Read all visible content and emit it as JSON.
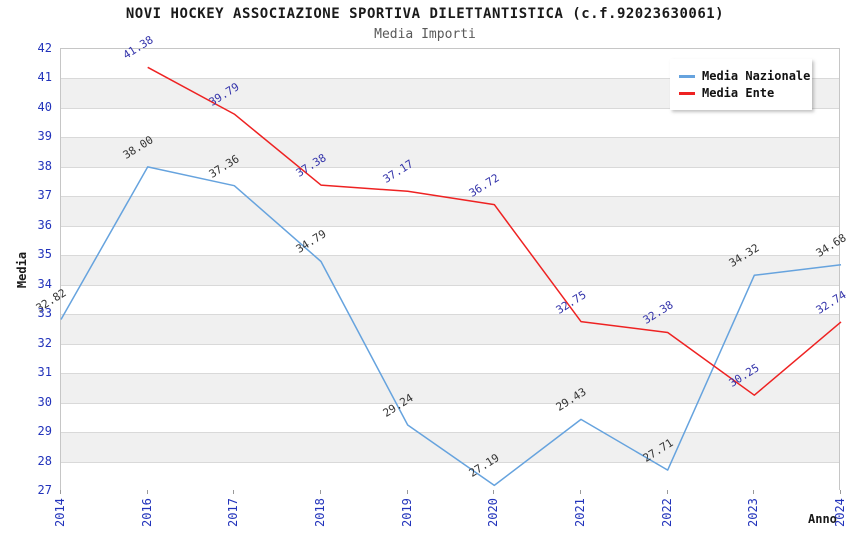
{
  "header": {
    "title": "NOVI HOCKEY ASSOCIAZIONE SPORTIVA DILETTANTISTICA (c.f.92023630061)",
    "subtitle": "Media Importi"
  },
  "chart_data": {
    "type": "line",
    "title": "NOVI HOCKEY ASSOCIAZIONE SPORTIVA DILETTANTISTICA (c.f.92023630061)",
    "subtitle": "Media Importi",
    "xlabel": "Anno",
    "ylabel": "Media",
    "ylim": [
      27,
      42
    ],
    "ytick_step": 1,
    "grid": "horizontal",
    "banded_background": true,
    "legend_position": "top-right",
    "categories": [
      "2014",
      "2016",
      "2017",
      "2018",
      "2019",
      "2020",
      "2021",
      "2022",
      "2023",
      "2024"
    ],
    "series": [
      {
        "name": "Media Nazionale",
        "color": "#66a3de",
        "label_color": "#333333",
        "values": [
          32.82,
          38.0,
          37.36,
          34.79,
          29.24,
          27.19,
          29.43,
          27.71,
          34.32,
          34.68
        ]
      },
      {
        "name": "Media Ente",
        "color": "#ee2222",
        "label_color": "#3333aa",
        "values": [
          null,
          41.38,
          39.79,
          37.38,
          37.17,
          36.72,
          32.75,
          32.38,
          30.25,
          32.74
        ]
      }
    ],
    "style": {
      "band_color": "#f0f0f0",
      "band_alt_color": "#ffffff",
      "gridline_color": "#d9d9d9",
      "plot_border_color": "#c6c6c6",
      "tick_label_color": "#2233bb",
      "title_color": "#1a1a1a",
      "subtitle_color": "#595959"
    }
  }
}
